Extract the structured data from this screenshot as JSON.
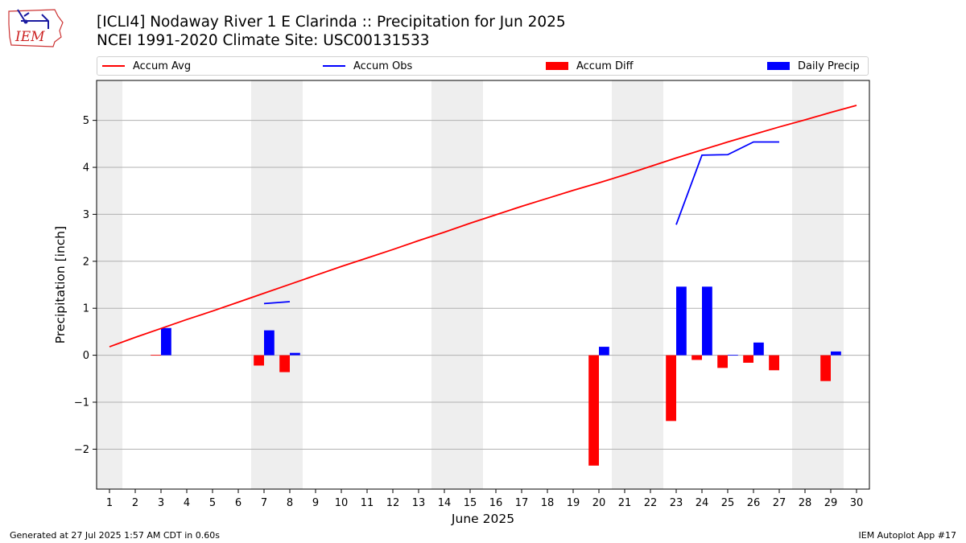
{
  "logo": {
    "text": "IEM"
  },
  "title": {
    "line1": "[ICLI4] Nodaway River 1 E Clarinda :: Precipitation for Jun 2025",
    "line2": "NCEI 1991-2020 Climate Site: USC00131533"
  },
  "legend": {
    "accum_avg": "Accum Avg",
    "accum_obs": "Accum Obs",
    "accum_diff": "Accum Diff",
    "daily_precip": "Daily Precip"
  },
  "footer": {
    "left": "Generated at 27 Jul 2025 1:57 AM CDT in 0.60s",
    "right": "IEM Autoplot App #17"
  },
  "colors": {
    "accum_avg": "#ff0000",
    "accum_obs": "#0000ff",
    "accum_diff": "#ff0000",
    "daily_precip": "#0000ff",
    "weekend_shade": "#eeeeee",
    "grid": "#b0b0b0"
  },
  "chart_data": {
    "type": "bar",
    "xlabel": "June 2025",
    "ylabel": "Precipitation [inch]",
    "x": [
      1,
      2,
      3,
      4,
      5,
      6,
      7,
      8,
      9,
      10,
      11,
      12,
      13,
      14,
      15,
      16,
      17,
      18,
      19,
      20,
      21,
      22,
      23,
      24,
      25,
      26,
      27,
      28,
      29,
      30
    ],
    "xlim": [
      0.5,
      30.5
    ],
    "ylim": [
      -2.85,
      5.85
    ],
    "yticks": [
      -2,
      -1,
      0,
      1,
      2,
      3,
      4,
      5
    ],
    "ytick_labels": [
      "−2",
      "−1",
      "0",
      "1",
      "2",
      "3",
      "4",
      "5"
    ],
    "grid": "horizontal",
    "weekend_days": [
      1,
      7,
      8,
      14,
      15,
      21,
      22,
      28,
      29
    ],
    "legend_position": "top",
    "series": [
      {
        "name": "Accum Avg",
        "type": "line",
        "x": [
          1,
          2,
          3,
          4,
          5,
          6,
          7,
          8,
          9,
          10,
          11,
          12,
          13,
          14,
          15,
          16,
          17,
          18,
          19,
          20,
          21,
          22,
          23,
          24,
          25,
          26,
          27,
          28,
          29,
          30
        ],
        "values": [
          0.18,
          0.38,
          0.57,
          0.76,
          0.94,
          1.13,
          1.32,
          1.51,
          1.7,
          1.89,
          2.07,
          2.25,
          2.44,
          2.62,
          2.81,
          2.99,
          3.17,
          3.34,
          3.51,
          3.67,
          3.84,
          4.02,
          4.2,
          4.37,
          4.54,
          4.7,
          4.86,
          5.01,
          5.17,
          5.32
        ]
      },
      {
        "name": "Accum Obs",
        "type": "line",
        "segments": [
          {
            "x": [
              7,
              8
            ],
            "values": [
              1.1,
              1.14
            ]
          },
          {
            "x": [
              23,
              24,
              25,
              26,
              27
            ],
            "values": [
              2.78,
              4.26,
              4.27,
              4.54,
              4.54
            ]
          }
        ]
      },
      {
        "name": "Accum Diff",
        "type": "bar",
        "x": [
          3,
          7,
          8,
          20,
          23,
          24,
          25,
          26,
          27,
          29
        ],
        "values": [
          0.01,
          -0.22,
          -0.36,
          -2.35,
          -1.4,
          -0.1,
          -0.27,
          -0.16,
          -0.32,
          -0.55
        ]
      },
      {
        "name": "Daily Precip",
        "type": "bar",
        "x": [
          3,
          7,
          8,
          20,
          23,
          24,
          25,
          26,
          29
        ],
        "values": [
          0.58,
          0.53,
          0.05,
          0.18,
          1.46,
          1.46,
          0.01,
          0.27,
          0.08
        ]
      }
    ]
  }
}
